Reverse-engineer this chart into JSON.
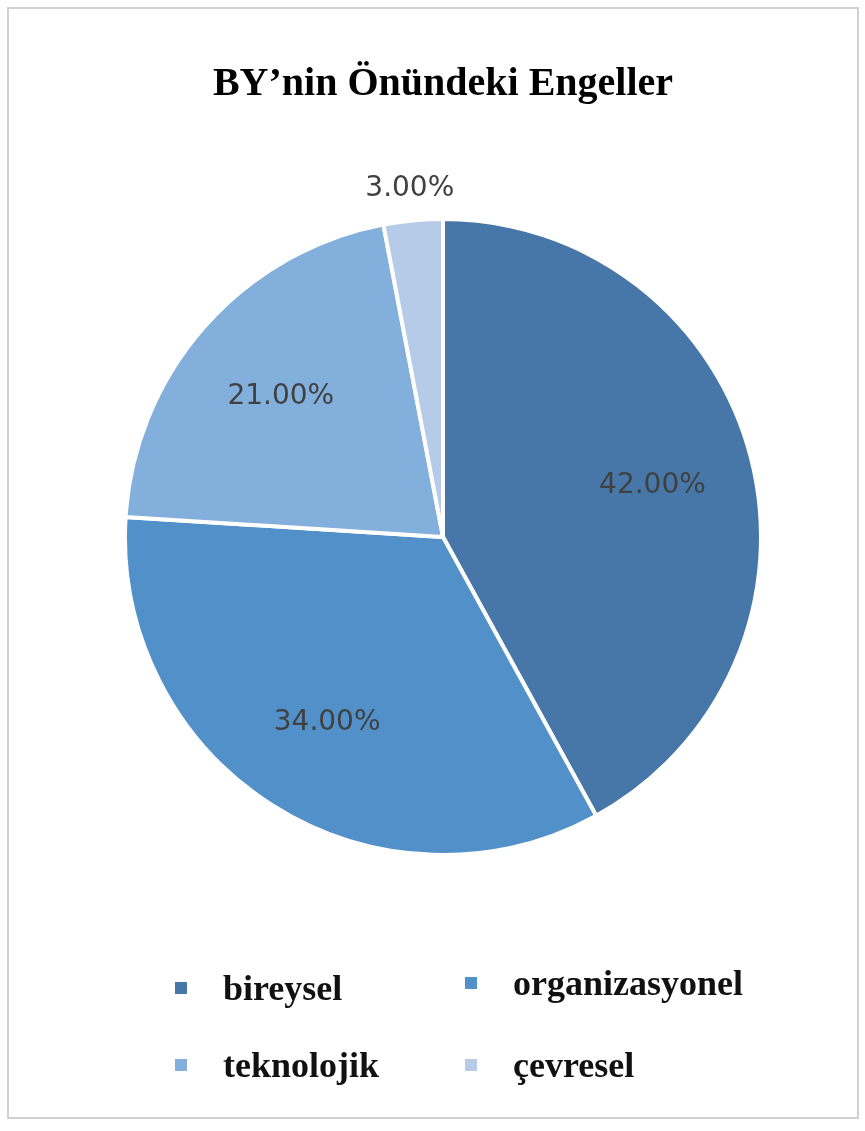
{
  "chart_data": {
    "type": "pie",
    "title": "BY’nin Önündeki Engeller",
    "categories": [
      "bireysel",
      "organizasyonel",
      "teknolojik",
      "çevresel"
    ],
    "values": [
      42,
      34,
      21,
      3
    ],
    "colors": [
      "#4677a8",
      "#5190c8",
      "#83afdc",
      "#b5cbe7"
    ],
    "value_labels": [
      "42.00%",
      "34.00%",
      "21.00%",
      "3.00%"
    ],
    "legend": "bottom"
  }
}
